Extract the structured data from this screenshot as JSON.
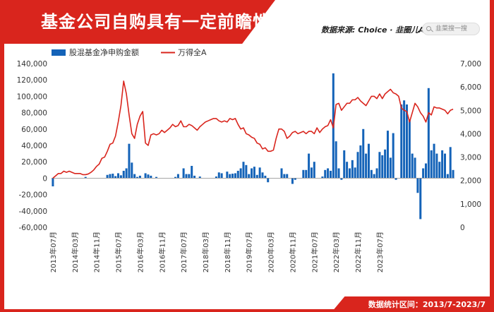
{
  "header": {
    "title": "基金公司自购具有一定前瞻性",
    "source": "数据来源: Choice · 韭圈儿App",
    "search_placeholder": "韭菜搜一搜"
  },
  "footer": {
    "stat_range": "数据统计区间：2013/7-2023/7"
  },
  "colors": {
    "bar": "#1463b8",
    "line": "#d9251d",
    "brand": "#d9251d"
  },
  "chart_data": {
    "type": "bar+line",
    "title": "",
    "legend": [
      "股混基金净申购金额",
      "万得全A"
    ],
    "legend_position": "top-left",
    "grid": false,
    "left_axis": {
      "min": -60000,
      "max": 140000,
      "ticks": [
        -60000,
        -40000,
        -20000,
        0,
        20000,
        40000,
        60000,
        80000,
        100000,
        120000,
        140000
      ],
      "tick_labels": [
        "-60,000",
        "-40,000",
        "-20,000",
        "0",
        "20,000",
        "40,000",
        "60,000",
        "80,000",
        "100,000",
        "120,000",
        "140,000"
      ]
    },
    "right_axis": {
      "min": 0,
      "max": 7000,
      "ticks": [
        0,
        1000,
        2000,
        3000,
        4000,
        5000,
        6000,
        7000
      ],
      "tick_labels": [
        "0",
        "1,000",
        "2,000",
        "3,000",
        "4,000",
        "5,000",
        "6,000",
        "7,000"
      ]
    },
    "x_start": "2013-07",
    "x_tick_labels": [
      "2013年07月",
      "2014年03月",
      "2014年11月",
      "2015年07月",
      "2016年03月",
      "2016年11月",
      "2017年07月",
      "2018年03月",
      "2018年11月",
      "2019年07月",
      "2020年03月",
      "2020年11月",
      "2021年07月",
      "2022年03月",
      "2022年11月",
      "2023年07月"
    ],
    "x_tick_step_months": 8,
    "series": [
      {
        "name": "股混基金净申购金额",
        "kind": "bar",
        "axis": "left",
        "values": [
          -10000,
          0,
          0,
          0,
          0,
          0,
          0,
          0,
          0,
          0,
          0,
          0,
          1500,
          0,
          0,
          0,
          0,
          0,
          0,
          0,
          4000,
          5000,
          5500,
          2500,
          6000,
          3500,
          9000,
          12000,
          42000,
          19000,
          5000,
          1500,
          3000,
          0,
          6000,
          4500,
          3000,
          0,
          1500,
          0,
          0,
          0,
          0,
          0,
          0,
          1500,
          5000,
          0,
          12000,
          5000,
          5000,
          15000,
          3000,
          0,
          2000,
          0,
          0,
          0,
          0,
          0,
          2000,
          7000,
          6000,
          0,
          8000,
          5000,
          5500,
          6000,
          9000,
          12000,
          20000,
          16000,
          5000,
          12000,
          14000,
          4000,
          13000,
          7000,
          3000,
          -5000,
          0,
          0,
          0,
          0,
          12000,
          5000,
          5000,
          0,
          -7000,
          -2000,
          0,
          0,
          10000,
          10000,
          30000,
          13000,
          20000,
          0,
          0,
          2000,
          10000,
          12000,
          9000,
          128000,
          45000,
          12000,
          -2000,
          34000,
          20000,
          12000,
          22000,
          13000,
          32000,
          40000,
          60000,
          30000,
          42000,
          10000,
          5000,
          12000,
          32000,
          28000,
          35000,
          58000,
          25000,
          55000,
          -2000,
          0,
          90000,
          95000,
          90000,
          72000,
          30000,
          25000,
          -18000,
          -50000,
          12000,
          18000,
          110000,
          34000,
          42000,
          30000,
          20000,
          34000,
          30000,
          5000,
          38000,
          10000
        ]
      },
      {
        "name": "万得全A",
        "kind": "line",
        "axis": "right",
        "values": [
          2100,
          2200,
          2300,
          2300,
          2400,
          2350,
          2400,
          2350,
          2300,
          2300,
          2300,
          2250,
          2250,
          2280,
          2350,
          2450,
          2600,
          2700,
          2950,
          3000,
          3250,
          3550,
          3600,
          3900,
          4500,
          5200,
          6250,
          5700,
          4800,
          4000,
          3800,
          4400,
          4750,
          4950,
          3600,
          3500,
          3950,
          4000,
          3950,
          4000,
          4150,
          4050,
          4150,
          4250,
          4400,
          4300,
          4350,
          4550,
          4300,
          4300,
          4400,
          4350,
          4250,
          4150,
          4300,
          4400,
          4500,
          4550,
          4600,
          4650,
          4650,
          4550,
          4500,
          4550,
          4500,
          4650,
          4600,
          4650,
          4400,
          4200,
          4250,
          4000,
          3950,
          3850,
          3800,
          3600,
          3550,
          3350,
          3400,
          3250,
          3250,
          3300,
          3800,
          4200,
          4200,
          4100,
          3800,
          3900,
          4050,
          4100,
          4000,
          4050,
          4100,
          4000,
          4100,
          4100,
          4000,
          4250,
          4050,
          4200,
          4300,
          4350,
          4600,
          4250,
          5250,
          5300,
          5000,
          5150,
          5300,
          5300,
          5450,
          5450,
          5550,
          5400,
          5300,
          5200,
          5400,
          5600,
          5600,
          5500,
          5700,
          5500,
          5700,
          5800,
          5900,
          5750,
          5700,
          5600,
          5100,
          5000,
          4950,
          4500,
          4900,
          5300,
          5150,
          4900,
          4750,
          4500,
          4900,
          4800,
          5150,
          5100,
          5100,
          5050,
          5000,
          4850,
          5000,
          5050
        ]
      }
    ]
  }
}
